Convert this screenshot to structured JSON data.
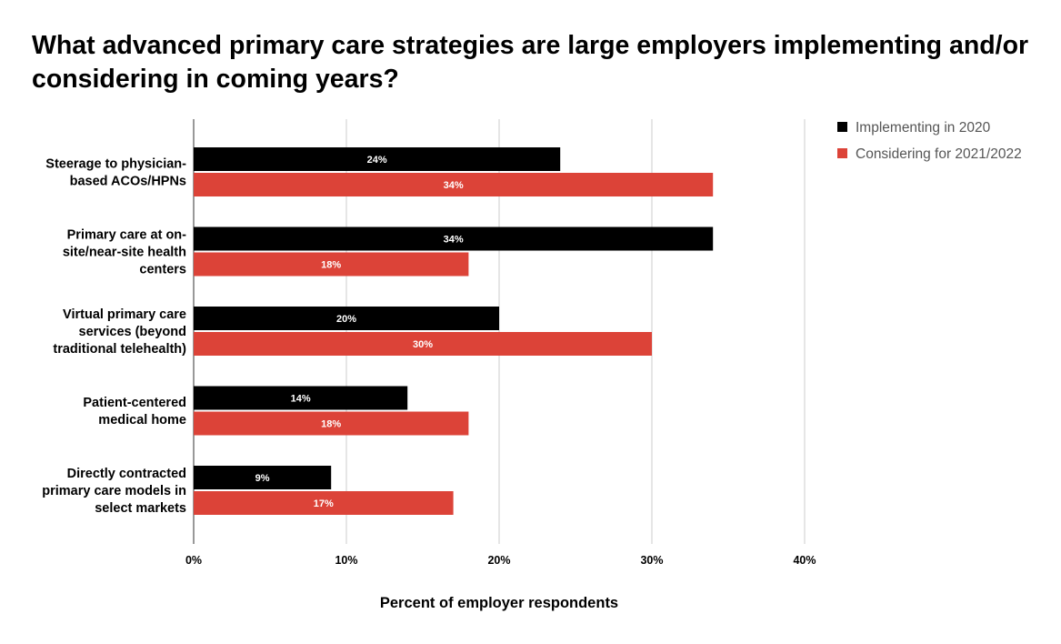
{
  "chart_data": {
    "type": "bar",
    "orientation": "horizontal",
    "title": "What advanced primary care strategies are large employers implementing and/or considering in coming years?",
    "xlabel": "Percent of employer respondents",
    "ylabel": "",
    "xlim": [
      0,
      40
    ],
    "x_ticks": [
      "0%",
      "10%",
      "20%",
      "30%",
      "40%"
    ],
    "grid": true,
    "legend_position": "top-right",
    "categories": [
      [
        "Steerage to physician-",
        "based ACOs/HPNs"
      ],
      [
        "Primary care at on-",
        "site/near-site health",
        "centers"
      ],
      [
        "Virtual primary care",
        "services (beyond",
        "traditional telehealth)"
      ],
      [
        "Patient-centered",
        "medical home"
      ],
      [
        "Directly contracted",
        "primary care models in",
        "select markets"
      ]
    ],
    "series": [
      {
        "name": "Implementing in 2020",
        "color": "#000000",
        "values": [
          24,
          34,
          20,
          14,
          9
        ],
        "labels": [
          "24%",
          "34%",
          "20%",
          "14%",
          "9%"
        ]
      },
      {
        "name": "Considering for 2021/2022",
        "color": "#dc4338",
        "values": [
          34,
          18,
          30,
          18,
          17
        ],
        "labels": [
          "34%",
          "18%",
          "30%",
          "18%",
          "17%"
        ]
      }
    ]
  }
}
